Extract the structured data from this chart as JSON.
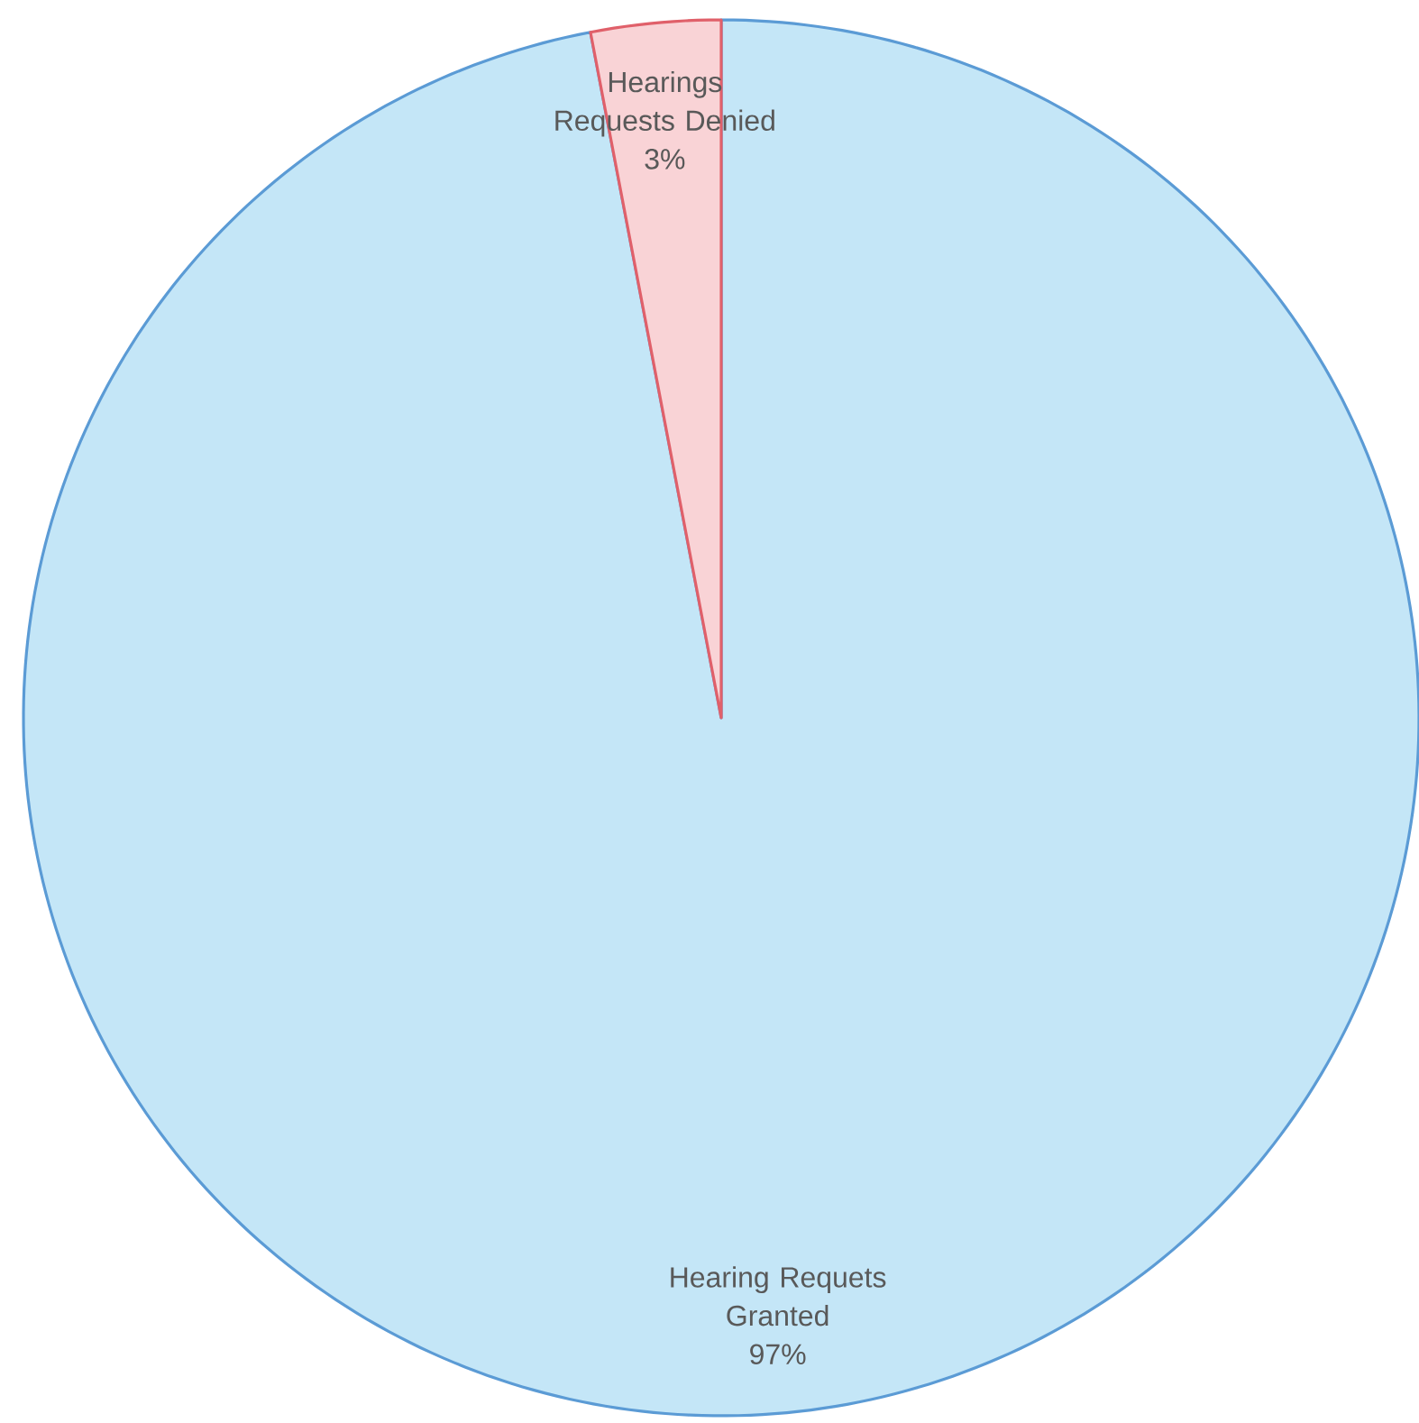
{
  "chart_data": {
    "type": "pie",
    "categories": [
      "Hearing Requets Granted",
      "Hearings Requests Denied"
    ],
    "values": [
      97,
      3
    ],
    "value_labels": [
      "97%",
      "3%"
    ],
    "colors": [
      "#c4e6f7",
      "#f9d3d6"
    ]
  }
}
